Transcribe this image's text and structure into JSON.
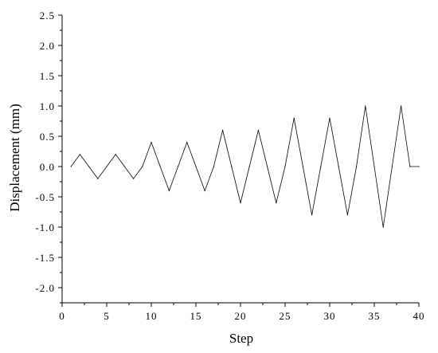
{
  "chart_data": {
    "type": "line",
    "title": "",
    "xlabel": "Step",
    "ylabel": "Displacement (mm)",
    "xlim": [
      0,
      40
    ],
    "ylim": [
      -2.25,
      2.5
    ],
    "xticks": [
      0,
      5,
      10,
      15,
      20,
      25,
      30,
      35,
      40
    ],
    "xtick_labels": [
      "0",
      "5",
      "10",
      "15",
      "20",
      "25",
      "30",
      "35",
      "40"
    ],
    "yticks": [
      2.5,
      2.0,
      1.5,
      1.0,
      0.5,
      0.0,
      -0.5,
      -1.0,
      -1.5,
      -2.0
    ],
    "ytick_labels": [
      "2.5",
      "2.0",
      "1.5",
      "1.0",
      "0.5",
      "0.0",
      "-0.5",
      "-1.0",
      "-1.5",
      "-2.0"
    ],
    "grid": false,
    "line_color": "#000000",
    "series": [
      {
        "x": [
          1,
          2,
          3,
          4,
          5,
          6,
          7,
          8,
          9,
          10,
          11,
          12,
          13,
          14,
          15,
          16,
          17,
          18,
          19,
          20,
          21,
          22,
          23,
          24,
          25,
          26,
          27,
          28,
          29,
          30,
          31,
          32,
          33,
          34,
          35,
          36,
          37,
          38,
          39,
          40
        ],
        "values": [
          0,
          0.2,
          0,
          -0.2,
          0,
          0.2,
          0,
          -0.2,
          0,
          0.4,
          0,
          -0.4,
          0,
          0.4,
          0,
          -0.4,
          0,
          0.6,
          0,
          -0.6,
          0,
          0.6,
          0,
          -0.6,
          0,
          0.8,
          0,
          -0.8,
          0,
          0.8,
          0,
          -0.8,
          0,
          1.0,
          0,
          -1.0,
          0,
          1.0,
          0,
          0
        ]
      }
    ]
  }
}
